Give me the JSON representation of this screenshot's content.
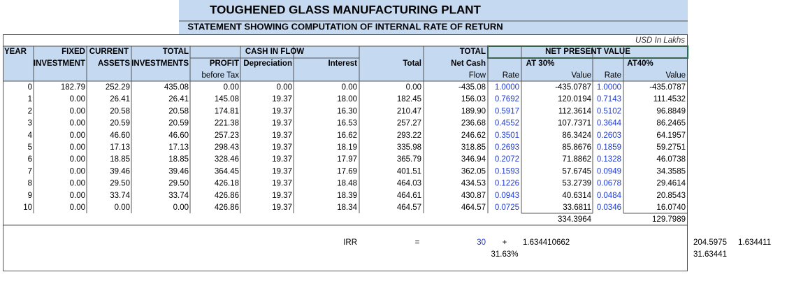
{
  "header": {
    "title": "TOUGHENED GLASS MANUFACTURING PLANT",
    "subtitle": "STATEMENT SHOWING COMPUTATION OF INTERNAL RATE OF RETURN",
    "unit": "USD In Lakhs"
  },
  "columns": {
    "row1": [
      "YEAR",
      "FIXED",
      "CURRENT",
      "TOTAL",
      "CASH IN FLOW",
      "TOTAL",
      "NET PRESENT VALUE"
    ],
    "row2": [
      "INVESTMENT",
      "ASSETS",
      "INVESTMENTS",
      "PROFIT",
      "Depreciation",
      "Interest",
      "Total",
      "Net Cash",
      "AT 30%",
      "AT40%"
    ],
    "row3": [
      "before Tax",
      "Flow",
      "Rate",
      "Value",
      "Rate",
      "Value"
    ]
  },
  "table": {
    "rows": [
      [
        "0",
        "182.79",
        "252.29",
        "435.08",
        "0.00",
        "0.00",
        "0.00",
        "0.00",
        "-435.08",
        "1.0000",
        "-435.0787",
        "1.0000",
        "-435.0787"
      ],
      [
        "1",
        "0.00",
        "26.41",
        "26.41",
        "145.08",
        "19.37",
        "18.00",
        "182.45",
        "156.03",
        "0.7692",
        "120.0194",
        "0.7143",
        "111.4532"
      ],
      [
        "2",
        "0.00",
        "20.58",
        "20.58",
        "174.81",
        "19.37",
        "16.30",
        "210.47",
        "189.90",
        "0.5917",
        "112.3614",
        "0.5102",
        "96.8849"
      ],
      [
        "3",
        "0.00",
        "20.59",
        "20.59",
        "221.38",
        "19.37",
        "16.53",
        "257.27",
        "236.68",
        "0.4552",
        "107.7371",
        "0.3644",
        "86.2465"
      ],
      [
        "4",
        "0.00",
        "46.60",
        "46.60",
        "257.23",
        "19.37",
        "16.62",
        "293.22",
        "246.62",
        "0.3501",
        "86.3424",
        "0.2603",
        "64.1957"
      ],
      [
        "5",
        "0.00",
        "17.13",
        "17.13",
        "298.43",
        "19.37",
        "18.19",
        "335.98",
        "318.85",
        "0.2693",
        "85.8676",
        "0.1859",
        "59.2751"
      ],
      [
        "6",
        "0.00",
        "18.85",
        "18.85",
        "328.46",
        "19.37",
        "17.97",
        "365.79",
        "346.94",
        "0.2072",
        "71.8862",
        "0.1328",
        "46.0738"
      ],
      [
        "7",
        "0.00",
        "39.46",
        "39.46",
        "364.45",
        "19.37",
        "17.69",
        "401.51",
        "362.05",
        "0.1593",
        "57.6745",
        "0.0949",
        "34.3585"
      ],
      [
        "8",
        "0.00",
        "29.50",
        "29.50",
        "426.18",
        "19.37",
        "18.48",
        "464.03",
        "434.53",
        "0.1226",
        "53.2739",
        "0.0678",
        "29.4614"
      ],
      [
        "9",
        "0.00",
        "33.74",
        "33.74",
        "426.86",
        "19.37",
        "18.39",
        "464.61",
        "430.87",
        "0.0943",
        "40.6314",
        "0.0484",
        "20.8543"
      ],
      [
        "10",
        "0.00",
        "0.00",
        "0.00",
        "426.86",
        "19.37",
        "18.34",
        "464.57",
        "464.57",
        "0.0725",
        "33.6811",
        "0.0346",
        "16.0740"
      ]
    ],
    "npv_totals": [
      "334.3964",
      "129.7989"
    ]
  },
  "irr": {
    "label": "IRR",
    "equals": "=",
    "base": "30",
    "plus": "+",
    "fraction": "1.634410662",
    "result": "31.63%"
  },
  "side": {
    "a": "204.5975",
    "b": "1.634411",
    "c": "31.63441"
  }
}
